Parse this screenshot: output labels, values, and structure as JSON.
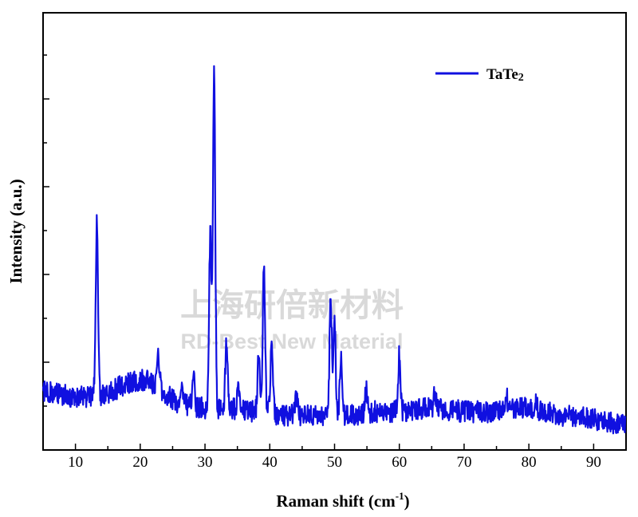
{
  "chart_data": {
    "type": "line",
    "title": "",
    "xlabel": "Raman shift (cm",
    "xlabel_sup": "-1",
    "xlabel_tail": ")",
    "ylabel": "Intensity (a.u.)",
    "xlim": [
      5,
      95
    ],
    "ylim": [
      0,
      100
    ],
    "xticks": [
      10,
      20,
      30,
      40,
      50,
      60,
      70,
      80,
      90
    ],
    "y_tick_labels": false,
    "grid": false,
    "legend_position": "top-right",
    "series": [
      {
        "name_main": "TaTe",
        "name_sub": "2",
        "color": "#1010e0",
        "baseline": [
          [
            5,
            13
          ],
          [
            10,
            11
          ],
          [
            13,
            11
          ],
          [
            15,
            12
          ],
          [
            18,
            15
          ],
          [
            21,
            16
          ],
          [
            23,
            13
          ],
          [
            26,
            9
          ],
          [
            30,
            8
          ],
          [
            34,
            8
          ],
          [
            38,
            7
          ],
          [
            42,
            6
          ],
          [
            46,
            6
          ],
          [
            52,
            6
          ],
          [
            56,
            7
          ],
          [
            60,
            7
          ],
          [
            64,
            8
          ],
          [
            66,
            8
          ],
          [
            70,
            7
          ],
          [
            75,
            7
          ],
          [
            78,
            8
          ],
          [
            80,
            8
          ],
          [
            85,
            6
          ],
          [
            90,
            5
          ],
          [
            95,
            3
          ]
        ],
        "peaks": [
          {
            "x": 13.3,
            "y": 58
          },
          {
            "x": 22.8,
            "y": 23
          },
          {
            "x": 26.5,
            "y": 14
          },
          {
            "x": 28.2,
            "y": 17
          },
          {
            "x": 30.8,
            "y": 56
          },
          {
            "x": 31.4,
            "y": 100
          },
          {
            "x": 33.3,
            "y": 25
          },
          {
            "x": 35.2,
            "y": 14
          },
          {
            "x": 38.3,
            "y": 24
          },
          {
            "x": 39.1,
            "y": 46
          },
          {
            "x": 40.3,
            "y": 27
          },
          {
            "x": 44.1,
            "y": 12
          },
          {
            "x": 49.4,
            "y": 38
          },
          {
            "x": 50.0,
            "y": 32
          },
          {
            "x": 51.0,
            "y": 21
          },
          {
            "x": 54.9,
            "y": 13
          },
          {
            "x": 60.0,
            "y": 23
          },
          {
            "x": 65.5,
            "y": 12
          },
          {
            "x": 76.5,
            "y": 12
          },
          {
            "x": 81.0,
            "y": 10
          }
        ]
      }
    ]
  },
  "watermark": {
    "line1": "上海研倍新材料",
    "line2": "RD-Best New Material"
  }
}
